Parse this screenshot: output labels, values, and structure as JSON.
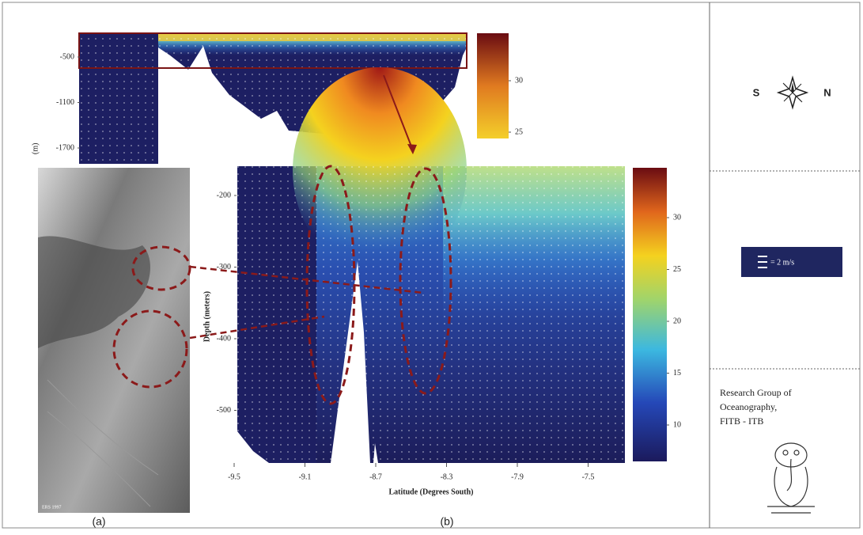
{
  "top_panel": {
    "y_label": "(m)",
    "y_ticks": [
      -500,
      -1100,
      -1700
    ],
    "colorbar_ticks": [
      30,
      25
    ]
  },
  "main_panel": {
    "y_label": "Depth (meters)",
    "x_label": "Latitude (Degrees South)",
    "y_ticks": [
      -200,
      -300,
      -400,
      -500
    ],
    "x_ticks": [
      -9.5,
      -9.1,
      -8.7,
      -8.3,
      -7.9,
      -7.5
    ],
    "colorbar_ticks": [
      30,
      25,
      20,
      15,
      10
    ]
  },
  "satellite_image": {
    "credit": "ERS 1997"
  },
  "captions": [
    "(a)",
    "(b)"
  ],
  "legend": {
    "south": "S",
    "north": "N",
    "scale": "= 2 m/s",
    "credit": [
      "Research Group of",
      "Oceanography,",
      "FITB - ITB"
    ]
  }
}
